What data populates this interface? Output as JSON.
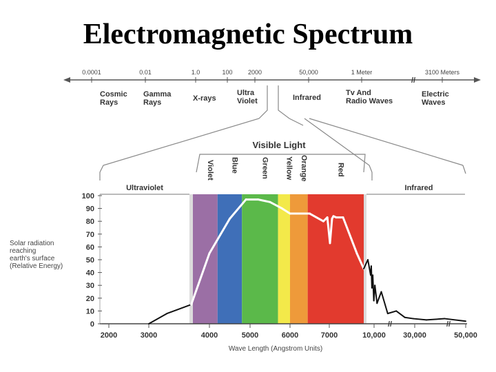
{
  "title": "Electromagnetic Spectrum",
  "scale": {
    "ticks": [
      "0.0001",
      "0.01",
      "1.0",
      "100",
      "2000",
      "50,000",
      "1 Meter",
      "3100 Meters"
    ]
  },
  "regions": [
    {
      "line1": "Cosmic",
      "line2": "Rays"
    },
    {
      "line1": "Gamma",
      "line2": "Rays"
    },
    {
      "line1": "X-rays",
      "line2": ""
    },
    {
      "line1": "Ultra",
      "line2": "Violet"
    },
    {
      "line1": "Infrared",
      "line2": ""
    },
    {
      "line1": "Tv And",
      "line2": "Radio Waves"
    },
    {
      "line1": "Electric",
      "line2": "Waves"
    }
  ],
  "visible_light": "Visible Light",
  "colour_bands": [
    "Violet",
    "Blue",
    "Green",
    "Yellow",
    "Orange",
    "Red"
  ],
  "panel_labels": {
    "left": "Ultraviolet",
    "right": "Infrared"
  },
  "y_axis_label": [
    "Solar radiation",
    "reaching",
    "earth's surface",
    "(Relative Energy)"
  ],
  "x_axis_label": "Wave Length (Angstrom Units)",
  "chart_data": {
    "type": "line",
    "x_tick_labels": [
      "2000",
      "3000",
      "4000",
      "5000",
      "6000",
      "7000",
      "10,000",
      "30,000",
      "50,000"
    ],
    "y_ticks": [
      0,
      10,
      20,
      30,
      40,
      50,
      60,
      70,
      80,
      90,
      100
    ],
    "ylim": [
      0,
      100
    ],
    "grid": false,
    "band_colors": {
      "Violet": "#9b6fa5",
      "Blue": "#3f6fb8",
      "Green": "#5bb94a",
      "Yellow": "#f3e94a",
      "Orange": "#ee9a3a",
      "Red": "#e23a2e"
    },
    "series": [
      {
        "x": [
          3000,
          3300,
          3700,
          4000,
          4500,
          4900,
          5200,
          5500,
          5800,
          6000,
          6500,
          6850,
          6950,
          7050,
          7200,
          7300,
          7500,
          8000,
          9000,
          9500,
          9800,
          10000,
          10300,
          10600,
          11000,
          11500,
          12000,
          13000,
          15000,
          18000,
          22000,
          26000,
          30000,
          35000,
          42000,
          50000
        ],
        "y": [
          0,
          8,
          15,
          55,
          82,
          97,
          97,
          95,
          90,
          86,
          86,
          80,
          83,
          63,
          82,
          84,
          83,
          83,
          55,
          43,
          50,
          38,
          45,
          28,
          38,
          18,
          30,
          16,
          25,
          8,
          10,
          5,
          4,
          3,
          4,
          2
        ]
      }
    ]
  }
}
